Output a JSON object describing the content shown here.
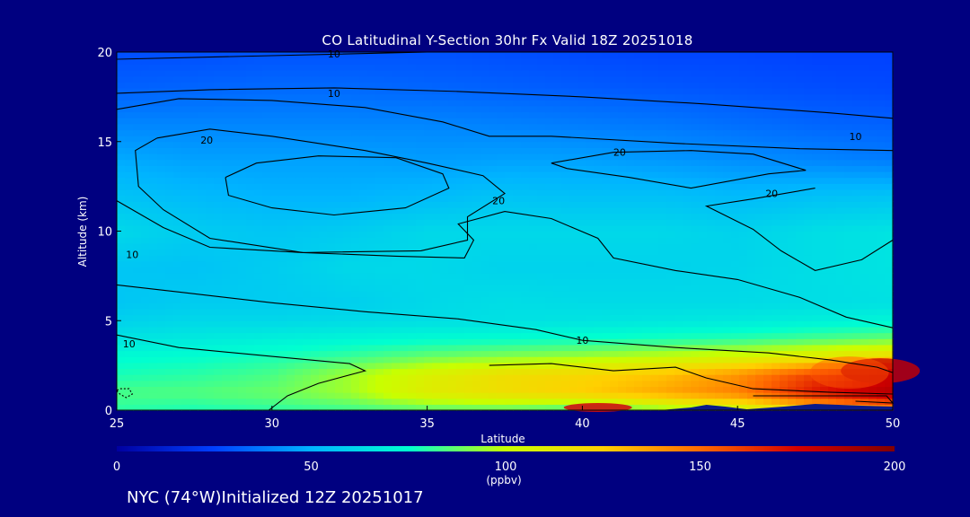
{
  "chart_data": {
    "type": "heatmap",
    "title": "CO Latitudinal Y-Section 30hr  Fx Valid 18Z 20251018",
    "xlabel": "Latitude",
    "ylabel": "Altitude (km)",
    "xlim": [
      25,
      50
    ],
    "ylim": [
      0,
      20
    ],
    "xticks": [
      "25",
      "30",
      "35",
      "40",
      "45",
      "50"
    ],
    "yticks": [
      "0",
      "5",
      "10",
      "15",
      "20"
    ],
    "colorbar": {
      "ticks": [
        "0",
        "50",
        "100",
        "150",
        "200"
      ],
      "units": "(ppbv)",
      "range": [
        0,
        200
      ],
      "colors": [
        "#0000a0",
        "#0040ff",
        "#00b4ff",
        "#00ffd0",
        "#c8ff00",
        "#ffd000",
        "#ff6a00",
        "#d40000",
        "#800000"
      ]
    },
    "contour_labels": [
      "10",
      "10",
      "10",
      "10",
      "10",
      "10",
      "20",
      "20",
      "20",
      "20"
    ],
    "field": {
      "lat": [
        25,
        27.5,
        30,
        32.5,
        35,
        37.5,
        40,
        42.5,
        45,
        47.5,
        50
      ],
      "alt": [
        0,
        1,
        2,
        3,
        4,
        5,
        6,
        8,
        10,
        12,
        14,
        16,
        18,
        20
      ],
      "values": [
        [
          80,
          78,
          80,
          82,
          85,
          85,
          80,
          90,
          100,
          120,
          140
        ],
        [
          84,
          85,
          88,
          95,
          110,
          118,
          125,
          135,
          145,
          170,
          185
        ],
        [
          78,
          80,
          84,
          95,
          108,
          118,
          122,
          128,
          140,
          160,
          175
        ],
        [
          74,
          75,
          78,
          82,
          88,
          92,
          95,
          100,
          105,
          112,
          120
        ],
        [
          66,
          68,
          70,
          72,
          74,
          75,
          76,
          78,
          80,
          84,
          88
        ],
        [
          60,
          62,
          62,
          63,
          64,
          65,
          66,
          67,
          68,
          70,
          72
        ],
        [
          56,
          58,
          58,
          59,
          62,
          64,
          63,
          63,
          63,
          64,
          65
        ],
        [
          56,
          55,
          58,
          62,
          62,
          60,
          60,
          60,
          61,
          64,
          66
        ],
        [
          62,
          58,
          56,
          58,
          62,
          62,
          62,
          62,
          60,
          64,
          66
        ],
        [
          55,
          52,
          50,
          50,
          52,
          55,
          54,
          54,
          52,
          54,
          55
        ],
        [
          48,
          46,
          46,
          46,
          45,
          46,
          46,
          44,
          42,
          40,
          38
        ],
        [
          40,
          40,
          40,
          40,
          40,
          39,
          38,
          37,
          35,
          33,
          32
        ],
        [
          32,
          33,
          34,
          34,
          33,
          32,
          31,
          30,
          29,
          28,
          27
        ],
        [
          28,
          28,
          29,
          29,
          29,
          28,
          27,
          26,
          26,
          25,
          25
        ]
      ]
    }
  },
  "footer": "NYC (74°W)Initialized 12Z 20251017"
}
